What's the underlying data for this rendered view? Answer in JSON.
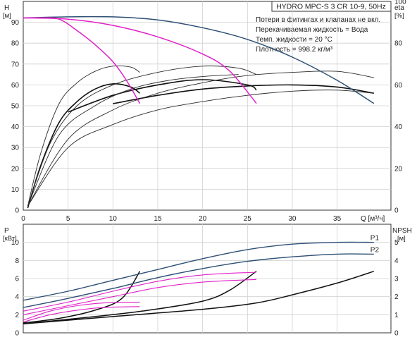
{
  "title": "HYDRO MPC-S 3 CR 10-9, 50Hz",
  "notes": [
    "Потери в фитингах и клапанах не вкл.",
    "Перекачиваемая жидкость = Вода",
    "Темп. жидкости = 20 °C",
    "Плотность = 998.2 кг/м³"
  ],
  "colors": {
    "blue": "#2c4f74",
    "magenta": "#e020c8",
    "black": "#111111",
    "grid": "#d0d0d0",
    "axis": "#333333"
  },
  "chart_data": [
    {
      "type": "line",
      "panel": "upper",
      "xlabel": "Q [м³/ч]",
      "ylabel": "H [м]",
      "y2label": "eta [%]",
      "xlim": [
        0,
        41
      ],
      "ylim": [
        0,
        100
      ],
      "y2lim": [
        0,
        100
      ],
      "xticks": [
        0,
        5,
        10,
        15,
        20,
        25,
        30,
        35
      ],
      "yticks": [
        0,
        10,
        20,
        30,
        40,
        50,
        60,
        70,
        80,
        90
      ],
      "y2ticks": [
        0,
        20,
        40,
        60,
        80,
        100
      ],
      "grid": true,
      "head_series": [
        {
          "color": "blue",
          "points": [
            [
              0,
              92.1
            ],
            [
              5,
              92.6
            ],
            [
              10,
              92.6
            ],
            [
              15,
              91.1
            ],
            [
              20,
              87.4
            ],
            [
              25,
              81.8
            ],
            [
              30,
              73.3
            ],
            [
              35,
              62.2
            ],
            [
              39.1,
              51.1
            ]
          ]
        },
        {
          "color": "magenta",
          "points": [
            [
              0,
              92.1
            ],
            [
              5,
              91.5
            ],
            [
              10,
              88.5
            ],
            [
              15,
              83.0
            ],
            [
              20,
              74.8
            ],
            [
              23,
              66.7
            ],
            [
              26,
              51.1
            ]
          ]
        },
        {
          "color": "magenta",
          "points": [
            [
              0,
              92.1
            ],
            [
              2,
              92.1
            ],
            [
              4,
              91.5
            ],
            [
              6,
              86.0
            ],
            [
              8,
              79.3
            ],
            [
              10,
              71.1
            ],
            [
              11.5,
              62.2
            ],
            [
              13,
              51.1
            ]
          ]
        }
      ],
      "efficiency_series": [
        {
          "color": "black",
          "points": [
            [
              0.5,
              1
            ],
            [
              2,
              22
            ],
            [
              4,
              42
            ],
            [
              6,
              52
            ],
            [
              8,
              58
            ],
            [
              10,
              60.5
            ],
            [
              12,
              59
            ],
            [
              13,
              56
            ]
          ]
        },
        {
          "color": "black",
          "points": [
            [
              5,
              47
            ],
            [
              10,
              55
            ],
            [
              15,
              60
            ],
            [
              20,
              62.5
            ],
            [
              25,
              60
            ],
            [
              26,
              57.5
            ]
          ]
        },
        {
          "color": "black",
          "points": [
            [
              10,
              51
            ],
            [
              15,
              55
            ],
            [
              20,
              58
            ],
            [
              25,
              59.5
            ],
            [
              30,
              60
            ],
            [
              35,
              59
            ],
            [
              39.1,
              56
            ]
          ]
        },
        {
          "color": "grey",
          "points": [
            [
              0.5,
              2
            ],
            [
              2,
              28
            ],
            [
              4,
              51
            ],
            [
              6,
              61
            ],
            [
              8,
              66.5
            ],
            [
              10,
              69
            ],
            [
              12,
              68.5
            ],
            [
              13,
              66
            ]
          ]
        },
        {
          "color": "grey",
          "points": [
            [
              0.5,
              2
            ],
            [
              3,
              32
            ],
            [
              6,
              50
            ],
            [
              10,
              60
            ],
            [
              15,
              66
            ],
            [
              20,
              69
            ],
            [
              24,
              68
            ],
            [
              26,
              65
            ]
          ]
        },
        {
          "color": "grey",
          "points": [
            [
              0.5,
              2
            ],
            [
              4,
              36
            ],
            [
              8,
              50
            ],
            [
              12,
              58
            ],
            [
              16,
              62
            ],
            [
              20,
              64
            ],
            [
              24,
              65
            ]
          ]
        },
        {
          "color": "grey",
          "points": [
            [
              0.5,
              2
            ],
            [
              5,
              34
            ],
            [
              10,
              48
            ],
            [
              15,
              56
            ],
            [
              20,
              61
            ],
            [
              25,
              64.5
            ],
            [
              30,
              66
            ],
            [
              35,
              66.5
            ],
            [
              39.1,
              63.5
            ]
          ]
        },
        {
          "color": "grey",
          "points": [
            [
              0.5,
              2
            ],
            [
              5,
              30
            ],
            [
              10,
              41
            ],
            [
              15,
              48
            ],
            [
              20,
              52
            ],
            [
              25,
              55
            ],
            [
              30,
              57
            ],
            [
              35,
              57.5
            ],
            [
              39.1,
              56
            ]
          ]
        }
      ]
    },
    {
      "type": "line",
      "panel": "lower",
      "ylabel": "P [кВт]",
      "y2label": "NPSH [м]",
      "xlim": [
        0,
        41
      ],
      "ylim": [
        0,
        12
      ],
      "y2lim": [
        0,
        6
      ],
      "yticks": [
        0,
        2,
        4,
        6,
        8,
        10
      ],
      "y2ticks": [
        0,
        1,
        2,
        3,
        4,
        5
      ],
      "grid": true,
      "power_series": [
        {
          "name": "P1",
          "color": "blue",
          "points": [
            [
              0,
              3.6
            ],
            [
              5,
              4.6
            ],
            [
              10,
              5.8
            ],
            [
              15,
              7.0
            ],
            [
              20,
              8.2
            ],
            [
              25,
              9.2
            ],
            [
              30,
              9.8
            ],
            [
              35,
              10.0
            ],
            [
              39.1,
              10.0
            ]
          ]
        },
        {
          "name": "P2",
          "color": "blue",
          "points": [
            [
              0,
              2.8
            ],
            [
              5,
              3.8
            ],
            [
              10,
              4.9
            ],
            [
              15,
              6.1
            ],
            [
              20,
              7.1
            ],
            [
              25,
              7.9
            ],
            [
              30,
              8.4
            ],
            [
              35,
              8.7
            ],
            [
              39.1,
              8.7
            ]
          ]
        },
        {
          "color": "magenta",
          "points": [
            [
              0,
              2.4
            ],
            [
              5,
              3.4
            ],
            [
              10,
              4.6
            ],
            [
              15,
              5.7
            ],
            [
              20,
              6.4
            ],
            [
              26,
              6.7
            ]
          ]
        },
        {
          "color": "magenta",
          "points": [
            [
              0,
              2.0
            ],
            [
              5,
              3.0
            ],
            [
              10,
              4.0
            ],
            [
              15,
              5.0
            ],
            [
              20,
              5.6
            ],
            [
              26,
              5.9
            ]
          ]
        },
        {
          "color": "magenta",
          "points": [
            [
              0,
              1.4
            ],
            [
              3,
              2.4
            ],
            [
              6,
              3.0
            ],
            [
              9,
              3.3
            ],
            [
              13,
              3.4
            ]
          ]
        },
        {
          "color": "magenta",
          "points": [
            [
              0,
              1.2
            ],
            [
              3,
              2.0
            ],
            [
              6,
              2.5
            ],
            [
              9,
              2.8
            ],
            [
              13,
              2.9
            ]
          ]
        }
      ],
      "npsh_series": [
        {
          "color": "black",
          "points": [
            [
              0,
              0.55
            ],
            [
              4,
              0.8
            ],
            [
              8,
              1.25
            ],
            [
              11,
              1.9
            ],
            [
              13,
              3.4
            ]
          ]
        },
        {
          "color": "black",
          "points": [
            [
              0,
              0.5
            ],
            [
              8,
              0.9
            ],
            [
              14,
              1.25
            ],
            [
              20,
              1.75
            ],
            [
              23,
              2.35
            ],
            [
              26,
              3.4
            ]
          ]
        },
        {
          "color": "black",
          "points": [
            [
              0,
              0.5
            ],
            [
              10,
              0.9
            ],
            [
              20,
              1.3
            ],
            [
              26,
              1.65
            ],
            [
              30,
              2.1
            ],
            [
              35,
              2.75
            ],
            [
              39.1,
              3.4
            ]
          ]
        }
      ]
    }
  ]
}
